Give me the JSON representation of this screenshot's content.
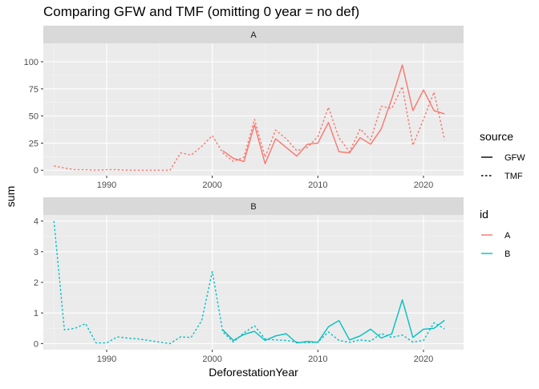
{
  "chart_data": {
    "type": "line",
    "title": "Comparing GFW and TMF (omitting 0 year = no def)",
    "xlabel": "DeforestationYear",
    "ylabel": "sum",
    "x_ticks": [
      1990,
      2000,
      2010,
      2020
    ],
    "x_range": [
      1984.0,
      2023.8
    ],
    "legends": [
      {
        "title": "source",
        "entries": [
          {
            "label": "GFW",
            "linetype": "solid"
          },
          {
            "label": "TMF",
            "linetype": "dashed"
          }
        ]
      },
      {
        "title": "id",
        "entries": [
          {
            "label": "A",
            "color": "#F8766D"
          },
          {
            "label": "B",
            "color": "#00BFC4"
          }
        ]
      }
    ],
    "panels": [
      {
        "strip": "A",
        "ylim": [
          -5,
          117
        ],
        "y_ticks": [
          0,
          25,
          50,
          75,
          100
        ],
        "series": [
          {
            "id": "A",
            "source": "GFW",
            "color": "#F8766D",
            "linetype": "solid",
            "points": [
              [
                2001,
                18
              ],
              [
                2002,
                11
              ],
              [
                2003,
                8
              ],
              [
                2004,
                42
              ],
              [
                2005,
                6
              ],
              [
                2006,
                29
              ],
              [
                2007,
                21
              ],
              [
                2008,
                13
              ],
              [
                2009,
                24
              ],
              [
                2010,
                25
              ],
              [
                2011,
                44
              ],
              [
                2012,
                17
              ],
              [
                2013,
                16
              ],
              [
                2014,
                30
              ],
              [
                2015,
                24
              ],
              [
                2016,
                38
              ],
              [
                2017,
                66
              ],
              [
                2018,
                97
              ],
              [
                2019,
                55
              ],
              [
                2020,
                74
              ],
              [
                2021,
                55
              ],
              [
                2022,
                52
              ]
            ]
          },
          {
            "id": "A",
            "source": "TMF",
            "color": "#F8766D",
            "linetype": "dashed",
            "points": [
              [
                1985,
                4
              ],
              [
                1986,
                2
              ],
              [
                1987,
                0.5
              ],
              [
                1988,
                0.5
              ],
              [
                1989,
                0
              ],
              [
                1990,
                0.5
              ],
              [
                1991,
                0.5
              ],
              [
                1992,
                0
              ],
              [
                1993,
                0
              ],
              [
                1994,
                0
              ],
              [
                1995,
                0
              ],
              [
                1996,
                0
              ],
              [
                1997,
                16
              ],
              [
                1998,
                14
              ],
              [
                1999,
                22
              ],
              [
                2000,
                32
              ],
              [
                2001,
                16
              ],
              [
                2002,
                8
              ],
              [
                2003,
                12
              ],
              [
                2004,
                47
              ],
              [
                2005,
                12
              ],
              [
                2006,
                37
              ],
              [
                2007,
                29
              ],
              [
                2008,
                18
              ],
              [
                2009,
                21
              ],
              [
                2010,
                31
              ],
              [
                2011,
                58
              ],
              [
                2012,
                30
              ],
              [
                2013,
                17
              ],
              [
                2014,
                38
              ],
              [
                2015,
                28
              ],
              [
                2016,
                59
              ],
              [
                2017,
                57
              ],
              [
                2018,
                77
              ],
              [
                2019,
                23
              ],
              [
                2020,
                47
              ],
              [
                2021,
                72
              ],
              [
                2022,
                28
              ]
            ]
          }
        ]
      },
      {
        "strip": "B",
        "ylim": [
          -0.2,
          4.2
        ],
        "y_ticks": [
          0,
          1,
          2,
          3,
          4
        ],
        "series": [
          {
            "id": "B",
            "source": "GFW",
            "color": "#00BFC4",
            "linetype": "solid",
            "points": [
              [
                2001,
                0.45
              ],
              [
                2002,
                0.1
              ],
              [
                2003,
                0.3
              ],
              [
                2004,
                0.4
              ],
              [
                2005,
                0.1
              ],
              [
                2006,
                0.25
              ],
              [
                2007,
                0.32
              ],
              [
                2008,
                0.02
              ],
              [
                2009,
                0.07
              ],
              [
                2010,
                0.04
              ],
              [
                2011,
                0.55
              ],
              [
                2012,
                0.75
              ],
              [
                2013,
                0.12
              ],
              [
                2014,
                0.25
              ],
              [
                2015,
                0.47
              ],
              [
                2016,
                0.18
              ],
              [
                2017,
                0.32
              ],
              [
                2018,
                1.43
              ],
              [
                2019,
                0.2
              ],
              [
                2020,
                0.47
              ],
              [
                2021,
                0.5
              ],
              [
                2022,
                0.76
              ]
            ]
          },
          {
            "id": "B",
            "source": "TMF",
            "color": "#00BFC4",
            "linetype": "dashed",
            "points": [
              [
                1985,
                4.0
              ],
              [
                1986,
                0.45
              ],
              [
                1987,
                0.5
              ],
              [
                1988,
                0.65
              ],
              [
                1989,
                0.02
              ],
              [
                1990,
                0.02
              ],
              [
                1991,
                0.22
              ],
              [
                1992,
                0.18
              ],
              [
                1993,
                0.15
              ],
              [
                1994,
                0.1
              ],
              [
                1995,
                0.05
              ],
              [
                1996,
                0.0
              ],
              [
                1997,
                0.22
              ],
              [
                1998,
                0.2
              ],
              [
                1999,
                0.75
              ],
              [
                2000,
                2.35
              ],
              [
                2001,
                0.38
              ],
              [
                2002,
                0.05
              ],
              [
                2003,
                0.35
              ],
              [
                2004,
                0.58
              ],
              [
                2005,
                0.15
              ],
              [
                2006,
                0.12
              ],
              [
                2007,
                0.1
              ],
              [
                2008,
                0.05
              ],
              [
                2009,
                0.03
              ],
              [
                2010,
                0.05
              ],
              [
                2011,
                0.38
              ],
              [
                2012,
                0.1
              ],
              [
                2013,
                0.04
              ],
              [
                2014,
                0.12
              ],
              [
                2015,
                0.08
              ],
              [
                2016,
                0.33
              ],
              [
                2017,
                0.2
              ],
              [
                2018,
                0.28
              ],
              [
                2019,
                0.05
              ],
              [
                2020,
                0.1
              ],
              [
                2021,
                0.68
              ],
              [
                2022,
                0.48
              ]
            ]
          }
        ]
      }
    ]
  }
}
